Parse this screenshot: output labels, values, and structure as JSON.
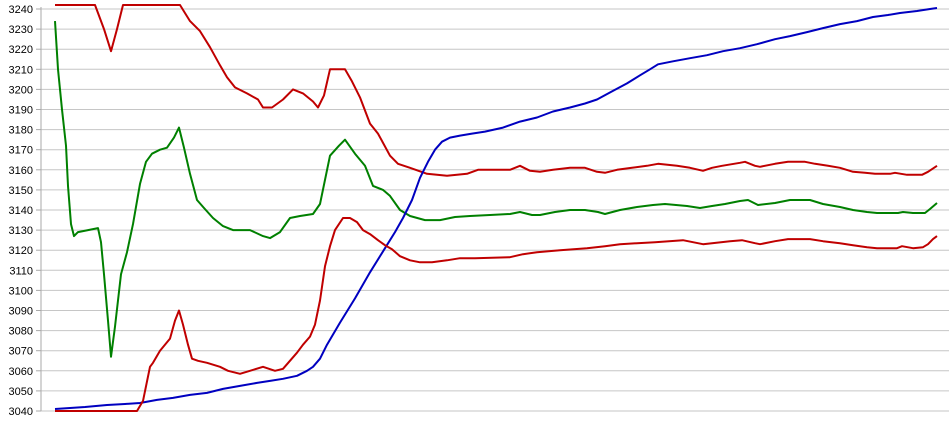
{
  "chart_data": {
    "type": "line",
    "title": "",
    "xlabel": "",
    "ylabel": "",
    "x_axis_labels_visible": false,
    "grid": true,
    "legend": "none",
    "ylim": [
      3040,
      3240
    ],
    "ytick_step": 10,
    "yticks": [
      3240,
      3230,
      3220,
      3210,
      3200,
      3190,
      3180,
      3170,
      3160,
      3150,
      3140,
      3130,
      3120,
      3110,
      3100,
      3090,
      3080,
      3070,
      3060,
      3050,
      3040
    ],
    "colors": {
      "grid": "#c6c6c6",
      "axis": "#aaaaaa",
      "label": "#000000",
      "red": "#c00000",
      "green": "#008000",
      "blue": "#0000c0"
    },
    "series": [
      {
        "name": "red-upper",
        "color": "#c00000",
        "points": [
          [
            55,
            3242
          ],
          [
            95,
            3242
          ],
          [
            98,
            3238
          ],
          [
            104,
            3230
          ],
          [
            111,
            3219
          ],
          [
            117,
            3230
          ],
          [
            123,
            3242
          ],
          [
            180,
            3242
          ],
          [
            190,
            3234
          ],
          [
            200,
            3229
          ],
          [
            210,
            3221
          ],
          [
            220,
            3212
          ],
          [
            227,
            3206
          ],
          [
            235,
            3201
          ],
          [
            247,
            3198
          ],
          [
            258,
            3195
          ],
          [
            263,
            3191
          ],
          [
            272,
            3191
          ],
          [
            283,
            3195
          ],
          [
            293,
            3200
          ],
          [
            303,
            3198
          ],
          [
            313,
            3194
          ],
          [
            318,
            3191
          ],
          [
            324,
            3197
          ],
          [
            330,
            3210
          ],
          [
            345,
            3210
          ],
          [
            352,
            3204
          ],
          [
            360,
            3196
          ],
          [
            370,
            3183
          ],
          [
            378,
            3178
          ],
          [
            390,
            3167
          ],
          [
            398,
            3163
          ],
          [
            410,
            3161
          ],
          [
            427,
            3158
          ],
          [
            447,
            3157
          ],
          [
            467,
            3158
          ],
          [
            478,
            3160
          ],
          [
            510,
            3160
          ],
          [
            520,
            3162
          ],
          [
            530,
            3159.5
          ],
          [
            540,
            3159
          ],
          [
            553,
            3160
          ],
          [
            570,
            3161
          ],
          [
            585,
            3161
          ],
          [
            597,
            3159
          ],
          [
            605,
            3158.5
          ],
          [
            617,
            3160
          ],
          [
            632,
            3161
          ],
          [
            647,
            3162
          ],
          [
            658,
            3163
          ],
          [
            677,
            3162
          ],
          [
            690,
            3161
          ],
          [
            703,
            3159.5
          ],
          [
            712,
            3161
          ],
          [
            722,
            3162
          ],
          [
            740,
            3163.5
          ],
          [
            745,
            3164
          ],
          [
            755,
            3162
          ],
          [
            760,
            3161.5
          ],
          [
            775,
            3163
          ],
          [
            788,
            3164
          ],
          [
            805,
            3164
          ],
          [
            815,
            3163
          ],
          [
            828,
            3162
          ],
          [
            840,
            3161
          ],
          [
            853,
            3159
          ],
          [
            865,
            3158.5
          ],
          [
            875,
            3158
          ],
          [
            890,
            3158
          ],
          [
            895,
            3158.5
          ],
          [
            907,
            3157.5
          ],
          [
            922,
            3157.5
          ],
          [
            928,
            3159
          ],
          [
            937,
            3162
          ]
        ]
      },
      {
        "name": "green",
        "color": "#008000",
        "points": [
          [
            55,
            3234
          ],
          [
            58,
            3210
          ],
          [
            62,
            3190
          ],
          [
            66,
            3172
          ],
          [
            68,
            3152
          ],
          [
            71,
            3133
          ],
          [
            74,
            3127
          ],
          [
            78,
            3129
          ],
          [
            88,
            3130
          ],
          [
            98,
            3131
          ],
          [
            101,
            3124
          ],
          [
            104,
            3108
          ],
          [
            108,
            3085
          ],
          [
            111,
            3067
          ],
          [
            115,
            3082
          ],
          [
            121,
            3108
          ],
          [
            127,
            3119
          ],
          [
            133,
            3133
          ],
          [
            140,
            3153
          ],
          [
            146,
            3164
          ],
          [
            152,
            3168
          ],
          [
            160,
            3170
          ],
          [
            167,
            3171
          ],
          [
            174,
            3176
          ],
          [
            179,
            3181
          ],
          [
            184,
            3171
          ],
          [
            190,
            3158
          ],
          [
            197,
            3145
          ],
          [
            204,
            3141
          ],
          [
            213,
            3136
          ],
          [
            223,
            3132
          ],
          [
            233,
            3130
          ],
          [
            250,
            3130
          ],
          [
            263,
            3127
          ],
          [
            270,
            3126
          ],
          [
            280,
            3129
          ],
          [
            290,
            3136
          ],
          [
            300,
            3137
          ],
          [
            313,
            3138
          ],
          [
            320,
            3143
          ],
          [
            330,
            3167
          ],
          [
            339,
            3172
          ],
          [
            345,
            3175
          ],
          [
            355,
            3168
          ],
          [
            365,
            3162
          ],
          [
            373,
            3152
          ],
          [
            383,
            3150
          ],
          [
            390,
            3147
          ],
          [
            400,
            3140
          ],
          [
            410,
            3137
          ],
          [
            425,
            3135
          ],
          [
            440,
            3135
          ],
          [
            455,
            3136.5
          ],
          [
            470,
            3137
          ],
          [
            490,
            3137.5
          ],
          [
            510,
            3138
          ],
          [
            520,
            3139
          ],
          [
            532,
            3137.5
          ],
          [
            540,
            3137.5
          ],
          [
            555,
            3139
          ],
          [
            570,
            3140
          ],
          [
            585,
            3140
          ],
          [
            598,
            3139
          ],
          [
            605,
            3138
          ],
          [
            620,
            3140
          ],
          [
            637,
            3141.5
          ],
          [
            653,
            3142.5
          ],
          [
            665,
            3143
          ],
          [
            687,
            3142
          ],
          [
            700,
            3141
          ],
          [
            712,
            3142
          ],
          [
            725,
            3143
          ],
          [
            740,
            3144.5
          ],
          [
            748,
            3145
          ],
          [
            758,
            3142.5
          ],
          [
            775,
            3143.5
          ],
          [
            790,
            3145
          ],
          [
            810,
            3145
          ],
          [
            823,
            3143
          ],
          [
            840,
            3141.5
          ],
          [
            853,
            3140
          ],
          [
            867,
            3139
          ],
          [
            877,
            3138.5
          ],
          [
            898,
            3138.5
          ],
          [
            903,
            3139
          ],
          [
            913,
            3138.5
          ],
          [
            925,
            3138.5
          ],
          [
            930,
            3140.5
          ],
          [
            937,
            3143.5
          ]
        ]
      },
      {
        "name": "blue",
        "color": "#0000c0",
        "points": [
          [
            55,
            3041
          ],
          [
            70,
            3041.5
          ],
          [
            85,
            3042
          ],
          [
            107,
            3043
          ],
          [
            125,
            3043.5
          ],
          [
            140,
            3044
          ],
          [
            157,
            3045.5
          ],
          [
            173,
            3046.5
          ],
          [
            190,
            3048
          ],
          [
            207,
            3049
          ],
          [
            223,
            3051
          ],
          [
            240,
            3052.5
          ],
          [
            257,
            3054
          ],
          [
            270,
            3055
          ],
          [
            283,
            3056
          ],
          [
            297,
            3057.5
          ],
          [
            307,
            3060
          ],
          [
            313,
            3062
          ],
          [
            320,
            3066
          ],
          [
            327,
            3073
          ],
          [
            340,
            3084
          ],
          [
            355,
            3096
          ],
          [
            370,
            3109
          ],
          [
            385,
            3121
          ],
          [
            395,
            3129
          ],
          [
            403,
            3136
          ],
          [
            412,
            3145
          ],
          [
            420,
            3156
          ],
          [
            428,
            3164
          ],
          [
            435,
            3170
          ],
          [
            442,
            3174
          ],
          [
            450,
            3176
          ],
          [
            460,
            3177
          ],
          [
            472,
            3178
          ],
          [
            485,
            3179
          ],
          [
            503,
            3181
          ],
          [
            520,
            3184
          ],
          [
            537,
            3186
          ],
          [
            553,
            3189
          ],
          [
            570,
            3191
          ],
          [
            585,
            3193
          ],
          [
            597,
            3195
          ],
          [
            612,
            3199
          ],
          [
            627,
            3203
          ],
          [
            640,
            3207
          ],
          [
            650,
            3210
          ],
          [
            658,
            3212.5
          ],
          [
            673,
            3214
          ],
          [
            690,
            3215.5
          ],
          [
            707,
            3217
          ],
          [
            723,
            3219
          ],
          [
            740,
            3220.5
          ],
          [
            757,
            3222.5
          ],
          [
            775,
            3225
          ],
          [
            790,
            3226.5
          ],
          [
            807,
            3228.5
          ],
          [
            823,
            3230.5
          ],
          [
            840,
            3232.5
          ],
          [
            857,
            3234
          ],
          [
            873,
            3236
          ],
          [
            888,
            3237
          ],
          [
            900,
            3238
          ],
          [
            917,
            3239
          ],
          [
            930,
            3240
          ],
          [
            937,
            3240.5
          ]
        ]
      },
      {
        "name": "red-lower",
        "color": "#c00000",
        "points": [
          [
            55,
            3040
          ],
          [
            137,
            3040
          ],
          [
            143,
            3045
          ],
          [
            150,
            3062
          ],
          [
            153,
            3064
          ],
          [
            160,
            3070
          ],
          [
            170,
            3076
          ],
          [
            175,
            3085
          ],
          [
            179,
            3090
          ],
          [
            183,
            3083
          ],
          [
            188,
            3073
          ],
          [
            192,
            3066
          ],
          [
            198,
            3065
          ],
          [
            207,
            3064
          ],
          [
            220,
            3062
          ],
          [
            228,
            3060
          ],
          [
            240,
            3058.5
          ],
          [
            250,
            3060
          ],
          [
            263,
            3062
          ],
          [
            275,
            3060
          ],
          [
            283,
            3061
          ],
          [
            297,
            3069
          ],
          [
            303,
            3073
          ],
          [
            310,
            3077
          ],
          [
            315,
            3083
          ],
          [
            320,
            3095
          ],
          [
            325,
            3112
          ],
          [
            330,
            3122
          ],
          [
            335,
            3130
          ],
          [
            343,
            3136
          ],
          [
            350,
            3136
          ],
          [
            357,
            3134
          ],
          [
            363,
            3130
          ],
          [
            370,
            3128
          ],
          [
            378,
            3125
          ],
          [
            385,
            3122.5
          ],
          [
            392,
            3120.5
          ],
          [
            400,
            3117
          ],
          [
            410,
            3115
          ],
          [
            420,
            3114
          ],
          [
            432,
            3114
          ],
          [
            447,
            3115
          ],
          [
            460,
            3116
          ],
          [
            475,
            3116
          ],
          [
            510,
            3116.5
          ],
          [
            523,
            3118
          ],
          [
            537,
            3119
          ],
          [
            560,
            3120
          ],
          [
            587,
            3121
          ],
          [
            605,
            3122
          ],
          [
            620,
            3123
          ],
          [
            637,
            3123.5
          ],
          [
            655,
            3124
          ],
          [
            683,
            3125
          ],
          [
            703,
            3123
          ],
          [
            712,
            3123.5
          ],
          [
            730,
            3124.5
          ],
          [
            742,
            3125
          ],
          [
            755,
            3123.5
          ],
          [
            760,
            3123
          ],
          [
            775,
            3124.5
          ],
          [
            788,
            3125.5
          ],
          [
            810,
            3125.5
          ],
          [
            823,
            3124.5
          ],
          [
            840,
            3123.5
          ],
          [
            853,
            3122.5
          ],
          [
            867,
            3121.5
          ],
          [
            877,
            3121
          ],
          [
            897,
            3121
          ],
          [
            902,
            3122
          ],
          [
            913,
            3121
          ],
          [
            923,
            3121.5
          ],
          [
            928,
            3123
          ],
          [
            933,
            3125.5
          ],
          [
            937,
            3127
          ]
        ]
      }
    ]
  }
}
